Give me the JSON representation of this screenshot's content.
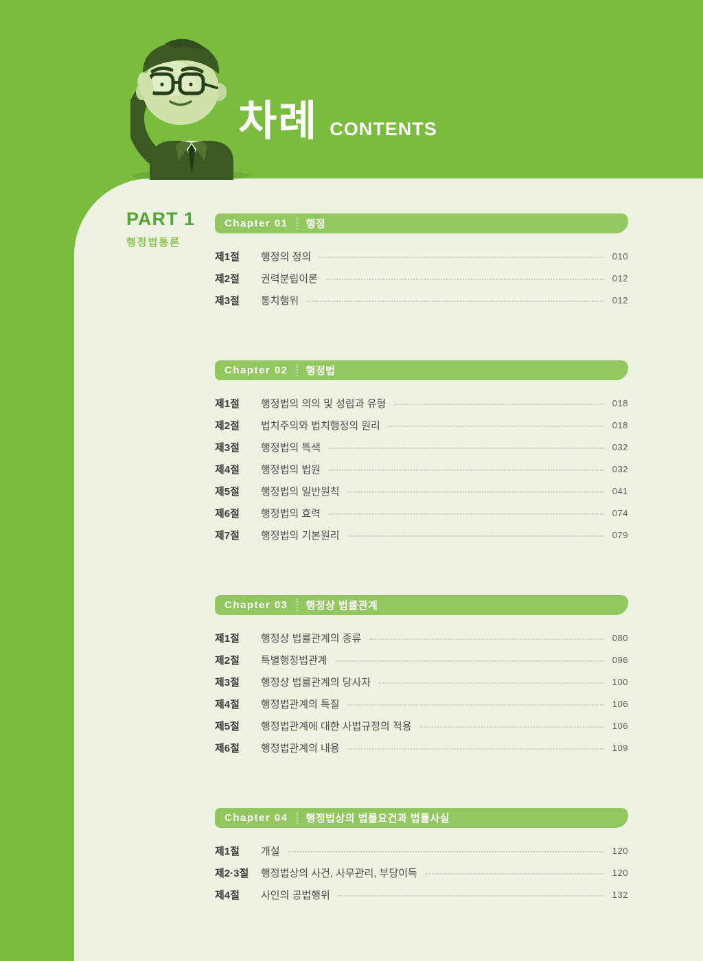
{
  "header": {
    "title_ko": "차례",
    "title_en": "CONTENTS"
  },
  "mascot_icon": "saluting-businessman-icon",
  "part": {
    "label": "PART 1",
    "title": "행정법통론"
  },
  "chapters": [
    {
      "label": "Chapter 01",
      "title": "행정",
      "sections": [
        {
          "no": "제1절",
          "title": "행정의 정의",
          "page": "010"
        },
        {
          "no": "제2절",
          "title": "권력분립이론",
          "page": "012"
        },
        {
          "no": "제3절",
          "title": "통치행위",
          "page": "012"
        }
      ]
    },
    {
      "label": "Chapter 02",
      "title": "행정법",
      "sections": [
        {
          "no": "제1절",
          "title": "행정법의 의의 및 성립과 유형",
          "page": "018"
        },
        {
          "no": "제2절",
          "title": "법치주의와 법치행정의 원리",
          "page": "018"
        },
        {
          "no": "제3절",
          "title": "행정법의 특색",
          "page": "032"
        },
        {
          "no": "제4절",
          "title": "행정법의 법원",
          "page": "032"
        },
        {
          "no": "제5절",
          "title": "행정법의 일반원칙",
          "page": "041"
        },
        {
          "no": "제6절",
          "title": "행정법의 효력",
          "page": "074"
        },
        {
          "no": "제7절",
          "title": "행정법의 기본원리",
          "page": "079"
        }
      ]
    },
    {
      "label": "Chapter 03",
      "title": "행정상 법률관계",
      "sections": [
        {
          "no": "제1절",
          "title": "행정상 법률관계의 종류",
          "page": "080"
        },
        {
          "no": "제2절",
          "title": "특별행정법관계",
          "page": "096"
        },
        {
          "no": "제3절",
          "title": "행정상 법률관계의 당사자",
          "page": "100"
        },
        {
          "no": "제4절",
          "title": "행정법관계의 특질",
          "page": "106"
        },
        {
          "no": "제5절",
          "title": "행정법관계에 대한 사법규정의 적용",
          "page": "106"
        },
        {
          "no": "제6절",
          "title": "행정법관계의 내용",
          "page": "109"
        }
      ]
    },
    {
      "label": "Chapter 04",
      "title": "행정법상의 법률요건과 법률사실",
      "sections": [
        {
          "no": "제1절",
          "title": "개설",
          "page": "120"
        },
        {
          "no": "제2·3절",
          "title": "행정법상의 사건, 사무관리, 부당이득",
          "page": "120"
        },
        {
          "no": "제4절",
          "title": "사인의 공법행위",
          "page": "132"
        }
      ]
    }
  ],
  "colors": {
    "background_green": "#7abc3e",
    "sheet_background": "#edf2e1",
    "chapter_bar_green": "#92c75f",
    "part_label_green": "#55a637",
    "part_subtitle_green": "#8ac455",
    "heading_white": "#ffffff",
    "section_number_color": "#3b3b3b",
    "section_title_color": "#4d4d4d",
    "page_number_color": "#5d5d5d",
    "leader_dot_color": "#c6cfb5",
    "mascot_dark": "#3a5923",
    "mascot_skin": "#cfe2ab"
  }
}
